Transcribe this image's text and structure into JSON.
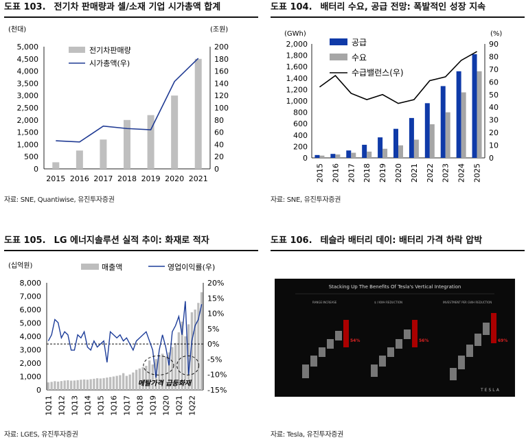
{
  "panels": [
    {
      "id": "p103",
      "number": "도표 103.",
      "title": "전기차 판매량과 셀/소재 기업 시가총액 합계",
      "source": "자료: SNE, Quantiwise, 유진투자증권"
    },
    {
      "id": "p104",
      "number": "도표 104.",
      "title": "배터리 수요, 공급 전망: 폭발적인 성장 지속",
      "source": "자료: SNE, 유진투자증권"
    },
    {
      "id": "p105",
      "number": "도표 105.",
      "title": "LG 에너지솔루션 실적 추이: 화재로 적자",
      "source": "자료: LGES, 유진투자증권"
    },
    {
      "id": "p106",
      "number": "도표 106.",
      "title": "테슬라 배터리 데이: 배터리 가격 하락 압박",
      "source": "자료: Tesla, 유진투자증권"
    }
  ],
  "tesla_image": {
    "title": "Stacking Up The Benefits Of Tesla's Vertical Integration",
    "columns": [
      "RANGE INCREASE",
      "$ / KWH REDUCTION",
      "INVESTMENT PER GWH REDUCTION"
    ],
    "results": [
      "54%",
      "56%",
      "69%"
    ],
    "logo": "TESLA"
  },
  "chart_data": [
    {
      "id": "p103",
      "type": "bar",
      "categories": [
        "2015",
        "2016",
        "2017",
        "2018",
        "2019",
        "2020",
        "2021"
      ],
      "series": [
        {
          "name": "전기차판매량",
          "axis": "left",
          "style": "bar",
          "color": "#bfbfbf",
          "values": [
            270,
            750,
            1200,
            2000,
            2200,
            3000,
            4500
          ]
        },
        {
          "name": "시가총액(우)",
          "axis": "right",
          "style": "line",
          "color": "#1f3a93",
          "values": [
            46,
            44,
            70,
            66,
            64,
            143,
            181
          ]
        }
      ],
      "ylabel": "(천대)",
      "y2label": "(조원)",
      "ylim": [
        0,
        5000
      ],
      "y2lim": [
        0,
        200
      ],
      "yticks": [
        0,
        500,
        1000,
        1500,
        2000,
        2500,
        3000,
        3500,
        4000,
        4500,
        5000
      ],
      "y2ticks": [
        0,
        20,
        40,
        60,
        80,
        100,
        120,
        140,
        160,
        180,
        200
      ],
      "ytick_labels": [
        "0",
        "500",
        "1,000",
        "1,500",
        "2,000",
        "2,500",
        "3,000",
        "3,500",
        "4,000",
        "4,500",
        "5,000"
      ],
      "y2tick_labels": [
        "0",
        "20",
        "40",
        "60",
        "80",
        "100",
        "120",
        "140",
        "160",
        "180",
        "200"
      ],
      "legend": [
        "전기차판매량",
        "시가총액(우)"
      ]
    },
    {
      "id": "p104",
      "type": "bar",
      "categories": [
        "2015",
        "2016",
        "2017",
        "2018",
        "2019",
        "2020",
        "2021",
        "2022",
        "2023",
        "2024",
        "2025"
      ],
      "series": [
        {
          "name": "공급",
          "axis": "left",
          "style": "bar",
          "color": "#0f3aa8",
          "values": [
            50,
            70,
            130,
            230,
            360,
            510,
            700,
            960,
            1260,
            1520,
            1820
          ]
        },
        {
          "name": "수요",
          "axis": "left",
          "style": "bar",
          "color": "#a6a6a6",
          "values": [
            40,
            60,
            90,
            110,
            160,
            220,
            320,
            590,
            800,
            1150,
            1520
          ]
        },
        {
          "name": "수급밸런스(우)",
          "axis": "right",
          "style": "line",
          "color": "#000000",
          "values": [
            56,
            65,
            51,
            46,
            50,
            43,
            46,
            61,
            64,
            77,
            84
          ]
        }
      ],
      "ylabel": "(GWh)",
      "y2label": "(%)",
      "ylim": [
        0,
        2000
      ],
      "y2lim": [
        0,
        90
      ],
      "ytick_labels": [
        "0",
        "200",
        "400",
        "600",
        "800",
        "1,000",
        "1,200",
        "1,400",
        "1,600",
        "1,800",
        "2,000"
      ],
      "y2tick_labels": [
        "0",
        "10",
        "20",
        "30",
        "40",
        "50",
        "60",
        "70",
        "80",
        "90"
      ],
      "legend": [
        "공급",
        "수요",
        "수급밸런스(우)"
      ]
    },
    {
      "id": "p105",
      "type": "bar",
      "categories": [
        "1Q11",
        "2Q11",
        "3Q11",
        "4Q11",
        "1Q12",
        "2Q12",
        "3Q12",
        "4Q12",
        "1Q13",
        "2Q13",
        "3Q13",
        "4Q13",
        "1Q14",
        "2Q14",
        "3Q14",
        "4Q14",
        "1Q15",
        "2Q15",
        "3Q15",
        "4Q15",
        "1Q16",
        "2Q16",
        "3Q16",
        "4Q16",
        "1Q17",
        "2Q17",
        "3Q17",
        "4Q17",
        "1Q18",
        "2Q18",
        "3Q18",
        "4Q18",
        "1Q19",
        "2Q19",
        "3Q19",
        "4Q19",
        "1Q20",
        "2Q20",
        "3Q20",
        "4Q20",
        "1Q21",
        "2Q21",
        "3Q21",
        "4Q21",
        "1Q22",
        "2Q22",
        "3Q22",
        "4Q22"
      ],
      "x_tick_labels": [
        "1Q11",
        "1Q12",
        "1Q13",
        "1Q14",
        "1Q15",
        "1Q16",
        "1Q17",
        "1Q18",
        "1Q19",
        "1Q20",
        "1Q21",
        "1Q22"
      ],
      "series": [
        {
          "name": "매출액",
          "axis": "left",
          "style": "bar",
          "color": "#bdbdbd",
          "values": [
            560,
            600,
            650,
            620,
            660,
            700,
            720,
            690,
            700,
            730,
            760,
            780,
            760,
            800,
            830,
            870,
            850,
            880,
            920,
            960,
            1000,
            1050,
            1100,
            1250,
            1050,
            1150,
            1300,
            1500,
            1600,
            1700,
            1800,
            2200,
            1900,
            2300,
            2600,
            2700,
            2500,
            2800,
            3200,
            3500,
            4300,
            5100,
            4000,
            4900,
            5800,
            6000,
            6500,
            7300
          ]
        },
        {
          "name": "영업이익률(우)",
          "axis": "right",
          "style": "line",
          "color": "#1c3c99",
          "values": [
            1,
            3,
            8,
            7,
            2,
            4,
            3,
            -2,
            -2,
            3,
            2,
            4,
            -1,
            -2,
            1,
            -1,
            0,
            1,
            -6,
            4,
            3,
            2,
            3,
            1,
            2,
            0,
            -2,
            1,
            2,
            3,
            4,
            1,
            -2,
            -11,
            -2,
            3,
            -1,
            -7,
            4,
            6,
            9,
            3,
            14,
            -10,
            1,
            6,
            8,
            13
          ]
        }
      ],
      "ylabel": "(십억원)",
      "ylim": [
        0,
        8000
      ],
      "y2lim": [
        -15,
        20
      ],
      "ytick_labels": [
        "0",
        "1,000",
        "2,000",
        "3,000",
        "4,000",
        "5,000",
        "6,000",
        "7,000",
        "8,000"
      ],
      "y2tick_labels": [
        "-15%",
        "-10%",
        "-5%",
        "0%",
        "5%",
        "10%",
        "15%",
        "20%"
      ],
      "legend": [
        "매출액",
        "영업이익률(우)"
      ],
      "annotations": [
        "메탈가격 급등",
        "화재"
      ]
    }
  ]
}
